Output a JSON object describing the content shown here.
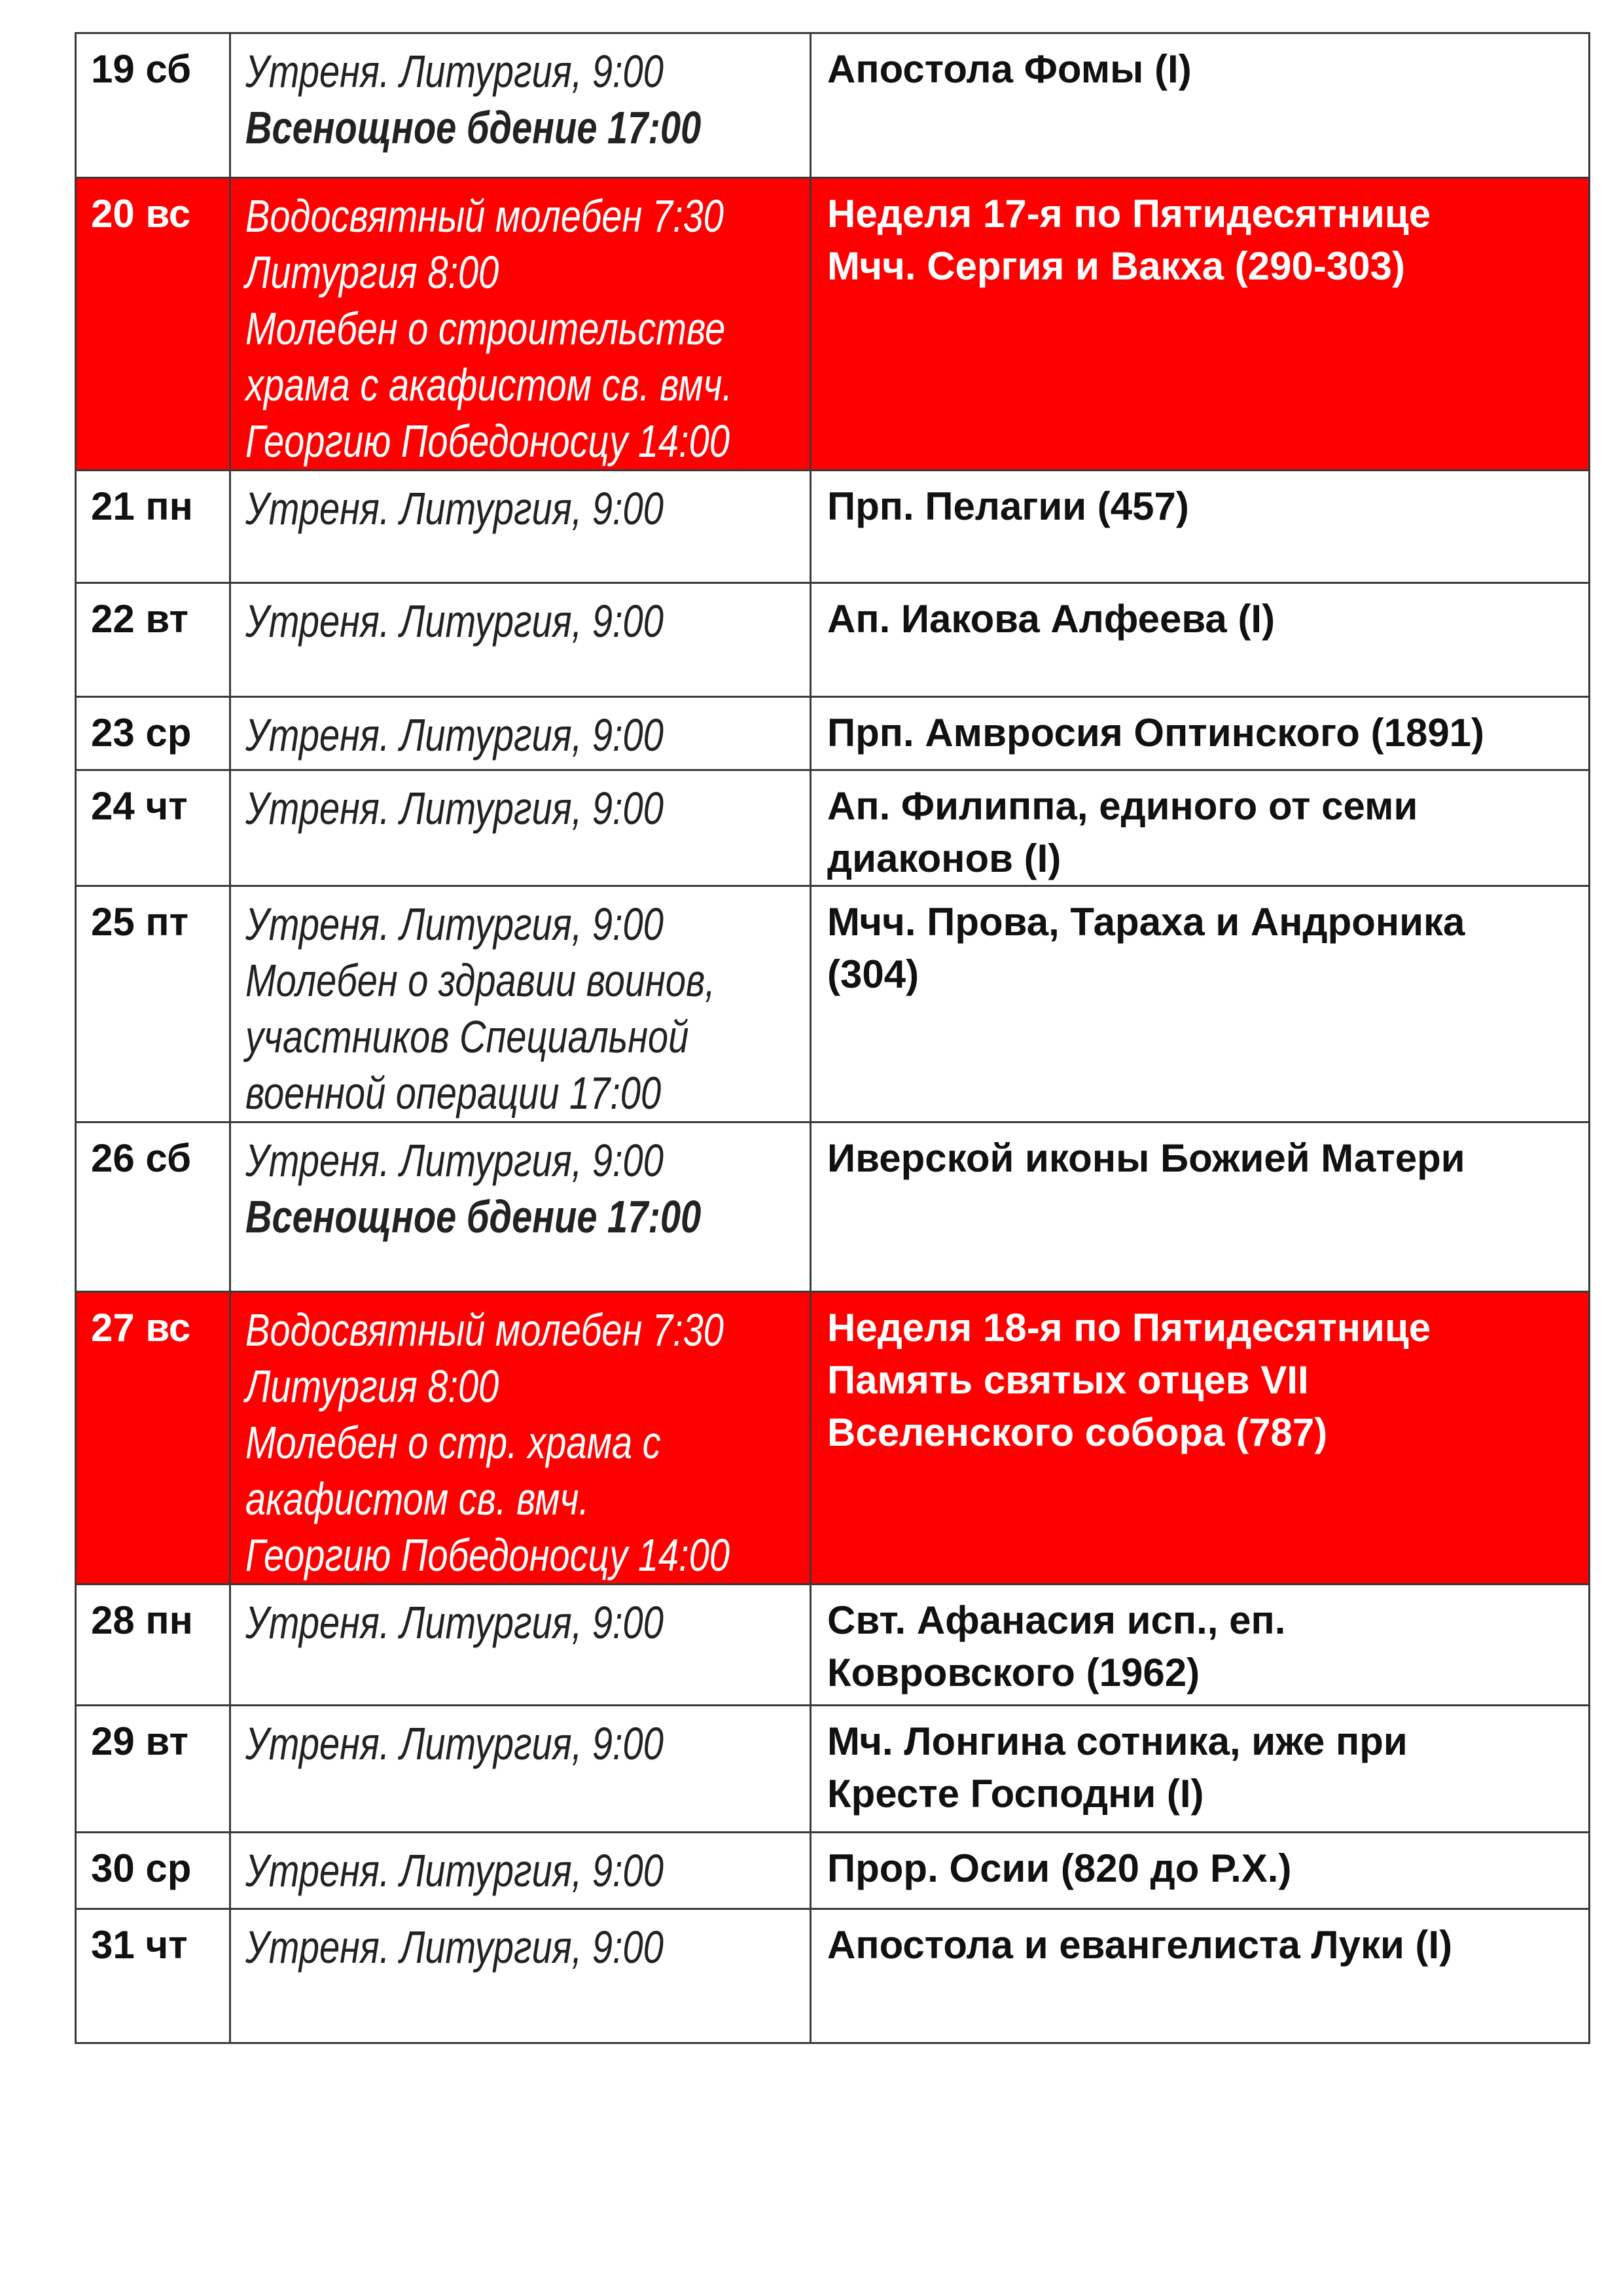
{
  "accent_color": "#ff0000",
  "rows": [
    {
      "day": "19 сб",
      "services": [
        "Утреня. Литургия, 9:00",
        "Всенощное бдение 17:00"
      ],
      "bold_service": 1,
      "feast": [
        "Апостола Фомы (I)"
      ],
      "highlight": false
    },
    {
      "day": "20 вс",
      "services": [
        "Водосвятный молебен 7:30",
        "Литургия 8:00",
        "Молебен о строительстве",
        "храма с акафистом св. вмч.",
        "Георгию Победоносцу 14:00"
      ],
      "feast": [
        "Неделя 17-я по Пятидесятнице",
        "Мчч. Сергия и Вакха (290-303)"
      ],
      "highlight": true
    },
    {
      "day": "21 пн",
      "services": [
        "Утреня. Литургия, 9:00"
      ],
      "feast": [
        "Прп. Пелагии (457)"
      ],
      "highlight": false
    },
    {
      "day": "22 вт",
      "services": [
        "Утреня. Литургия, 9:00"
      ],
      "feast": [
        "Ап. Иакова Алфеева (I)"
      ],
      "highlight": false
    },
    {
      "day": "23 ср",
      "services": [
        "Утреня. Литургия, 9:00"
      ],
      "feast": [
        "Прп. Амвросия Оптинского (1891)"
      ],
      "highlight": false
    },
    {
      "day": "24 чт",
      "services": [
        "Утреня. Литургия, 9:00"
      ],
      "feast": [
        "Ап. Филиппа, единого от семи",
        "диаконов (I)"
      ],
      "highlight": false
    },
    {
      "day": "25 пт",
      "services": [
        "Утреня. Литургия, 9:00",
        "Молебен о здравии воинов,",
        "участников Специальной",
        "военной операции 17:00"
      ],
      "feast": [
        "Мчч. Прова, Тараха и Андроника",
        "(304)"
      ],
      "highlight": false
    },
    {
      "day": "26 сб",
      "services": [
        "Утреня. Литургия, 9:00",
        "Всенощное бдение 17:00"
      ],
      "bold_service": 1,
      "feast": [
        "Иверской иконы Божией Матери"
      ],
      "highlight": false
    },
    {
      "day": "27 вс",
      "services": [
        "Водосвятный молебен 7:30",
        "Литургия 8:00",
        "Молебен о стр. храма с",
        "акафистом св. вмч.",
        "Георгию Победоносцу 14:00"
      ],
      "feast": [
        "Неделя 18-я по Пятидесятнице",
        "Память святых отцев VII",
        "Вселенского собора (787)"
      ],
      "highlight": true
    },
    {
      "day": "28 пн",
      "services": [
        "Утреня. Литургия, 9:00"
      ],
      "feast": [
        "Свт. Афанасия исп., еп.",
        "Ковровского (1962)"
      ],
      "highlight": false
    },
    {
      "day": "29 вт",
      "services": [
        "Утреня. Литургия, 9:00"
      ],
      "feast": [
        "Мч. Лонгина сотника, иже при",
        "Кресте Господни (I)"
      ],
      "highlight": false
    },
    {
      "day": "30 ср",
      "services": [
        "Утреня. Литургия, 9:00"
      ],
      "feast": [
        "Прор. Осии (820 до Р.Х.)"
      ],
      "highlight": false
    },
    {
      "day": "31 чт",
      "services": [
        "Утреня. Литургия, 9:00"
      ],
      "feast": [
        "Апостола и евангелиста Луки (I)"
      ],
      "highlight": false
    }
  ]
}
